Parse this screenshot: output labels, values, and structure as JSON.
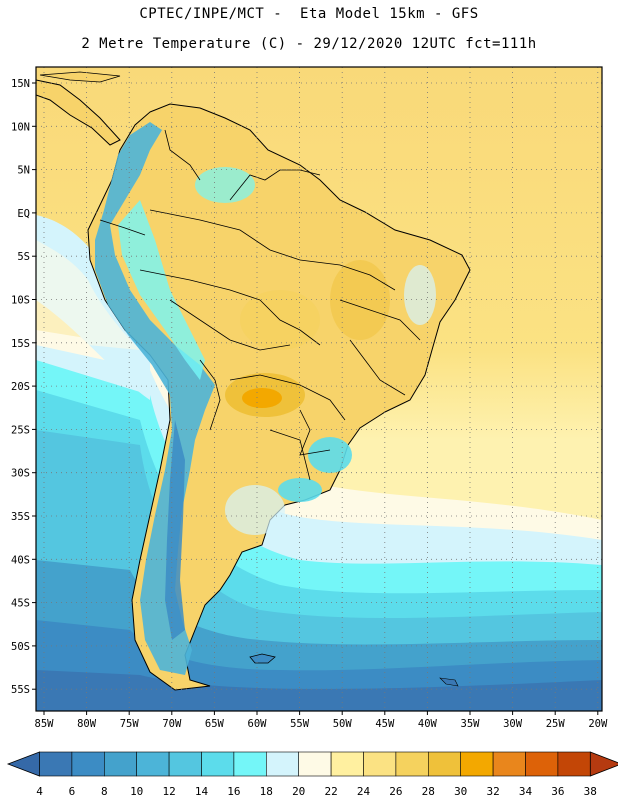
{
  "title_line1": "CPTEC/INPE/MCT -  Eta Model 15km - GFS",
  "title_line2": "2 Metre Temperature (C) - 29/12/2020 12UTC fct=111h",
  "lat_labels": [
    "15N",
    "10N",
    "5N",
    "EQ",
    "5S",
    "10S",
    "15S",
    "20S",
    "25S",
    "30S",
    "35S",
    "40S",
    "45S",
    "50S",
    "55S"
  ],
  "lon_labels": [
    "85W",
    "80W",
    "75W",
    "70W",
    "65W",
    "60W",
    "55W",
    "50W",
    "45W",
    "40W",
    "35W",
    "30W",
    "25W",
    "20W"
  ],
  "colorbar": {
    "labels": [
      "4",
      "6",
      "8",
      "10",
      "12",
      "14",
      "16",
      "18",
      "20",
      "22",
      "24",
      "26",
      "28",
      "30",
      "32",
      "34",
      "36",
      "38"
    ],
    "colors": [
      "#3a78b4",
      "#3c8cc4",
      "#44a2cc",
      "#4cb4d8",
      "#54c6e0",
      "#5cdceb",
      "#74f6f8",
      "#d4f4fc",
      "#fefae6",
      "#fff0a0",
      "#fbe283",
      "#f5d25e",
      "#efc13a",
      "#f3a800",
      "#e9861c",
      "#dd6208",
      "#c34606"
    ],
    "left_arrow_color": "#3569a8",
    "right_arrow_color": "#b53a10"
  },
  "map": {
    "land_warm_color": "#fbe283",
    "ocean_north_color": "#f9d979",
    "ocean_south_colors": [
      "#fefae6",
      "#d4f4fc",
      "#74f6f8",
      "#5cdceb",
      "#54c6e0",
      "#44a2cc",
      "#3c8cc4",
      "#3a78b4"
    ],
    "coastline_color": "#000000",
    "grid_color": "#777777"
  }
}
